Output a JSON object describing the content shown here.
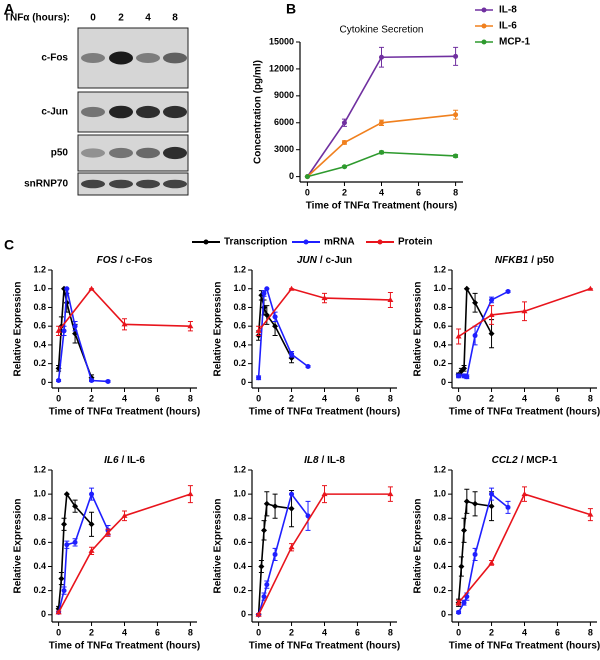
{
  "panel_labels": {
    "a": "A",
    "b": "B",
    "c": "C"
  },
  "blot": {
    "header": "TNFα (hours):",
    "lanes": [
      "0",
      "2",
      "4",
      "8"
    ],
    "rows": [
      "c-Fos",
      "c-Jun",
      "p50",
      "snRNP70"
    ]
  },
  "legend_c": [
    {
      "name": "Transcription",
      "color": "#000000"
    },
    {
      "name": "mRNA",
      "color": "#1f1fff"
    },
    {
      "name": "Protein",
      "color": "#e8141c"
    }
  ],
  "chart_data": [
    {
      "type": "line",
      "title": "Cytokine Secretion",
      "ylabel": "Concentration (pg/ml)",
      "xlabel": "Time of TNFα Treatment (hours)",
      "x": [
        0,
        2,
        4,
        8
      ],
      "xlim": [
        -0.4,
        8.4
      ],
      "ylim": [
        -600,
        15000
      ],
      "xticks": [
        0,
        2,
        4,
        6,
        8
      ],
      "yticks": [
        0,
        3000,
        6000,
        9000,
        12000,
        15000
      ],
      "legend": "right",
      "series": [
        {
          "name": "IL-8",
          "color": "#7030a0",
          "values": [
            0,
            6000,
            13300,
            13400
          ],
          "errors": [
            0,
            400,
            1100,
            1000
          ]
        },
        {
          "name": "IL-6",
          "color": "#f0801e",
          "values": [
            0,
            3800,
            6000,
            6900
          ],
          "errors": [
            0,
            200,
            300,
            500
          ]
        },
        {
          "name": "MCP-1",
          "color": "#2e9a2e",
          "values": [
            0,
            1100,
            2700,
            2300
          ],
          "errors": [
            0,
            100,
            150,
            150
          ]
        }
      ]
    },
    {
      "type": "line",
      "title": {
        "gene": "FOS",
        "rest": "/ c-Fos"
      },
      "ylabel": "Relative Expression",
      "xlabel": "Time of TNFα Treatment (hours)",
      "xlim": [
        -0.4,
        8.4
      ],
      "ylim": [
        -0.06,
        1.2
      ],
      "xticks": [
        0,
        2,
        4,
        6,
        8
      ],
      "yticks": [
        0,
        0.2,
        0.4,
        0.6,
        0.8,
        {
          "value": 1,
          "label": "1.0"
        },
        1.2
      ],
      "series": [
        {
          "x": [
            0,
            0.17,
            0.33,
            0.5,
            1,
            2
          ],
          "values": [
            0.15,
            0.6,
            1.0,
            0.85,
            0.52,
            0.05
          ],
          "errors": [
            0.03,
            0.1,
            0,
            0.1,
            0.1,
            0.03
          ]
        },
        {
          "x": [
            0,
            0.33,
            0.5,
            1,
            2,
            3
          ],
          "values": [
            0.02,
            0.55,
            1.0,
            0.6,
            0.02,
            0.01
          ],
          "errors": [
            0.01,
            0.05,
            0,
            0.05,
            0.01,
            0.01
          ]
        },
        {
          "x": [
            0,
            2,
            4,
            8
          ],
          "values": [
            0.55,
            1.0,
            0.62,
            0.6
          ],
          "errors": [
            0.05,
            0,
            0.06,
            0.05
          ]
        }
      ]
    },
    {
      "type": "line",
      "title": {
        "gene": "JUN",
        "rest": "/ c-Jun"
      },
      "ylabel": "Relative Expression",
      "xlabel": "Time of TNFα Treatment (hours)",
      "xlim": [
        -0.4,
        8.4
      ],
      "ylim": [
        -0.06,
        1.2
      ],
      "xticks": [
        0,
        2,
        4,
        6,
        8
      ],
      "yticks": [
        0,
        0.2,
        0.4,
        0.6,
        0.8,
        {
          "value": 1,
          "label": "1.0"
        },
        1.2
      ],
      "series": [
        {
          "x": [
            0,
            0.17,
            0.33,
            0.5,
            1,
            2
          ],
          "values": [
            0.5,
            0.93,
            0.8,
            0.72,
            0.6,
            0.26
          ],
          "errors": [
            0.05,
            0.05,
            0.08,
            0.1,
            0.1,
            0.05
          ]
        },
        {
          "x": [
            0,
            0.33,
            0.5,
            1,
            2,
            3
          ],
          "values": [
            0.05,
            0.95,
            1.0,
            0.7,
            0.3,
            0.17
          ],
          "errors": [
            0.02,
            0.03,
            0,
            0.05,
            0.03,
            0.01
          ]
        },
        {
          "x": [
            0,
            2,
            4,
            8
          ],
          "values": [
            0.55,
            1.0,
            0.9,
            0.88
          ],
          "errors": [
            0.05,
            0,
            0.05,
            0.08
          ]
        }
      ]
    },
    {
      "type": "line",
      "title": {
        "gene": "NFKB1",
        "rest": "/ p50"
      },
      "ylabel": "Relative Expression",
      "xlabel": "Time of TNFα Treatment (hours)",
      "xlim": [
        -0.4,
        8.4
      ],
      "ylim": [
        -0.06,
        1.2
      ],
      "xticks": [
        0,
        2,
        4,
        6,
        8
      ],
      "yticks": [
        0,
        0.2,
        0.4,
        0.6,
        0.8,
        {
          "value": 1,
          "label": "1.0"
        },
        1.2
      ],
      "series": [
        {
          "x": [
            0,
            0.17,
            0.33,
            0.5,
            1,
            2
          ],
          "values": [
            0.08,
            0.12,
            0.15,
            1.0,
            0.85,
            0.52
          ],
          "errors": [
            0.02,
            0.03,
            0.03,
            0,
            0.1,
            0.15
          ]
        },
        {
          "x": [
            0,
            0.33,
            0.5,
            1,
            2,
            3
          ],
          "values": [
            0.07,
            0.07,
            0.06,
            0.5,
            0.88,
            0.97
          ],
          "errors": [
            0.02,
            0.02,
            0.02,
            0.1,
            0.03,
            0.01
          ]
        },
        {
          "x": [
            0,
            2,
            4,
            8
          ],
          "values": [
            0.49,
            0.72,
            0.76,
            1.0
          ],
          "errors": [
            0.08,
            0.1,
            0.1,
            0
          ]
        }
      ]
    },
    {
      "type": "line",
      "title": {
        "gene": "IL6",
        "rest": "/ IL-6"
      },
      "ylabel": "Relative Expression",
      "xlabel": "Time of TNFα Treatment (hours)",
      "xlim": [
        -0.4,
        8.4
      ],
      "ylim": [
        -0.06,
        1.2
      ],
      "xticks": [
        0,
        2,
        4,
        6,
        8
      ],
      "yticks": [
        0,
        0.2,
        0.4,
        0.6,
        0.8,
        {
          "value": 1,
          "label": "1.0"
        },
        1.2
      ],
      "series": [
        {
          "x": [
            0,
            0.17,
            0.33,
            0.5,
            1,
            2
          ],
          "values": [
            0.05,
            0.3,
            0.75,
            1.0,
            0.9,
            0.75
          ],
          "errors": [
            0.02,
            0.05,
            0.05,
            0,
            0.05,
            0.1
          ]
        },
        {
          "x": [
            0,
            0.33,
            0.5,
            1,
            2,
            3
          ],
          "values": [
            0.02,
            0.2,
            0.58,
            0.6,
            1.0,
            0.7
          ],
          "errors": [
            0.01,
            0.03,
            0.03,
            0.03,
            0.05,
            0.04
          ]
        },
        {
          "x": [
            0,
            2,
            3,
            4,
            8
          ],
          "values": [
            0.02,
            0.53,
            0.68,
            0.82,
            1.0
          ],
          "errors": [
            0.01,
            0.03,
            0.03,
            0.04,
            0.07
          ]
        }
      ]
    },
    {
      "type": "line",
      "title": {
        "gene": "IL8",
        "rest": "/ IL-8"
      },
      "ylabel": "Relative Expression",
      "xlabel": "Time of TNFα Treatment (hours)",
      "xlim": [
        -0.4,
        8.4
      ],
      "ylim": [
        -0.06,
        1.2
      ],
      "xticks": [
        0,
        2,
        4,
        6,
        8
      ],
      "yticks": [
        0,
        0.2,
        0.4,
        0.6,
        0.8,
        {
          "value": 1,
          "label": "1.0"
        },
        1.2
      ],
      "series": [
        {
          "x": [
            0,
            0.17,
            0.33,
            0.5,
            1,
            2
          ],
          "values": [
            0,
            0.4,
            0.7,
            0.92,
            0.9,
            0.88
          ],
          "errors": [
            0.01,
            0.05,
            0.08,
            0.1,
            0.1,
            0.15
          ]
        },
        {
          "x": [
            0,
            0.33,
            0.5,
            1,
            2,
            3
          ],
          "values": [
            0,
            0.15,
            0.25,
            0.5,
            1.0,
            0.82
          ],
          "errors": [
            0.01,
            0.03,
            0.03,
            0.05,
            0,
            0.12
          ]
        },
        {
          "x": [
            0,
            2,
            4,
            8
          ],
          "values": [
            0,
            0.56,
            1.0,
            1.0
          ],
          "errors": [
            0.01,
            0.03,
            0.07,
            0.06
          ]
        }
      ]
    },
    {
      "type": "line",
      "title": {
        "gene": "CCL2",
        "rest": "/ MCP-1"
      },
      "ylabel": "Relative Expression",
      "xlabel": "Time of TNFα Treatment (hours)",
      "xlim": [
        -0.4,
        8.4
      ],
      "ylim": [
        -0.06,
        1.2
      ],
      "xticks": [
        0,
        2,
        4,
        6,
        8
      ],
      "yticks": [
        0,
        0.2,
        0.4,
        0.6,
        0.8,
        {
          "value": 1,
          "label": "1.0"
        },
        1.2
      ],
      "series": [
        {
          "x": [
            0,
            0.17,
            0.33,
            0.5,
            1,
            2
          ],
          "values": [
            0.1,
            0.4,
            0.7,
            0.94,
            0.92,
            0.9
          ],
          "errors": [
            0.03,
            0.08,
            0.1,
            0.1,
            0.1,
            0.12
          ]
        },
        {
          "x": [
            0,
            0.33,
            0.5,
            1,
            2,
            3
          ],
          "values": [
            0.02,
            0.1,
            0.15,
            0.5,
            1.0,
            0.89
          ],
          "errors": [
            0.01,
            0.02,
            0.03,
            0.05,
            0.05,
            0.05
          ]
        },
        {
          "x": [
            0,
            2,
            4,
            8
          ],
          "values": [
            0.1,
            0.43,
            1.0,
            0.83
          ],
          "errors": [
            0.02,
            0.02,
            0.06,
            0.05
          ]
        }
      ]
    }
  ]
}
